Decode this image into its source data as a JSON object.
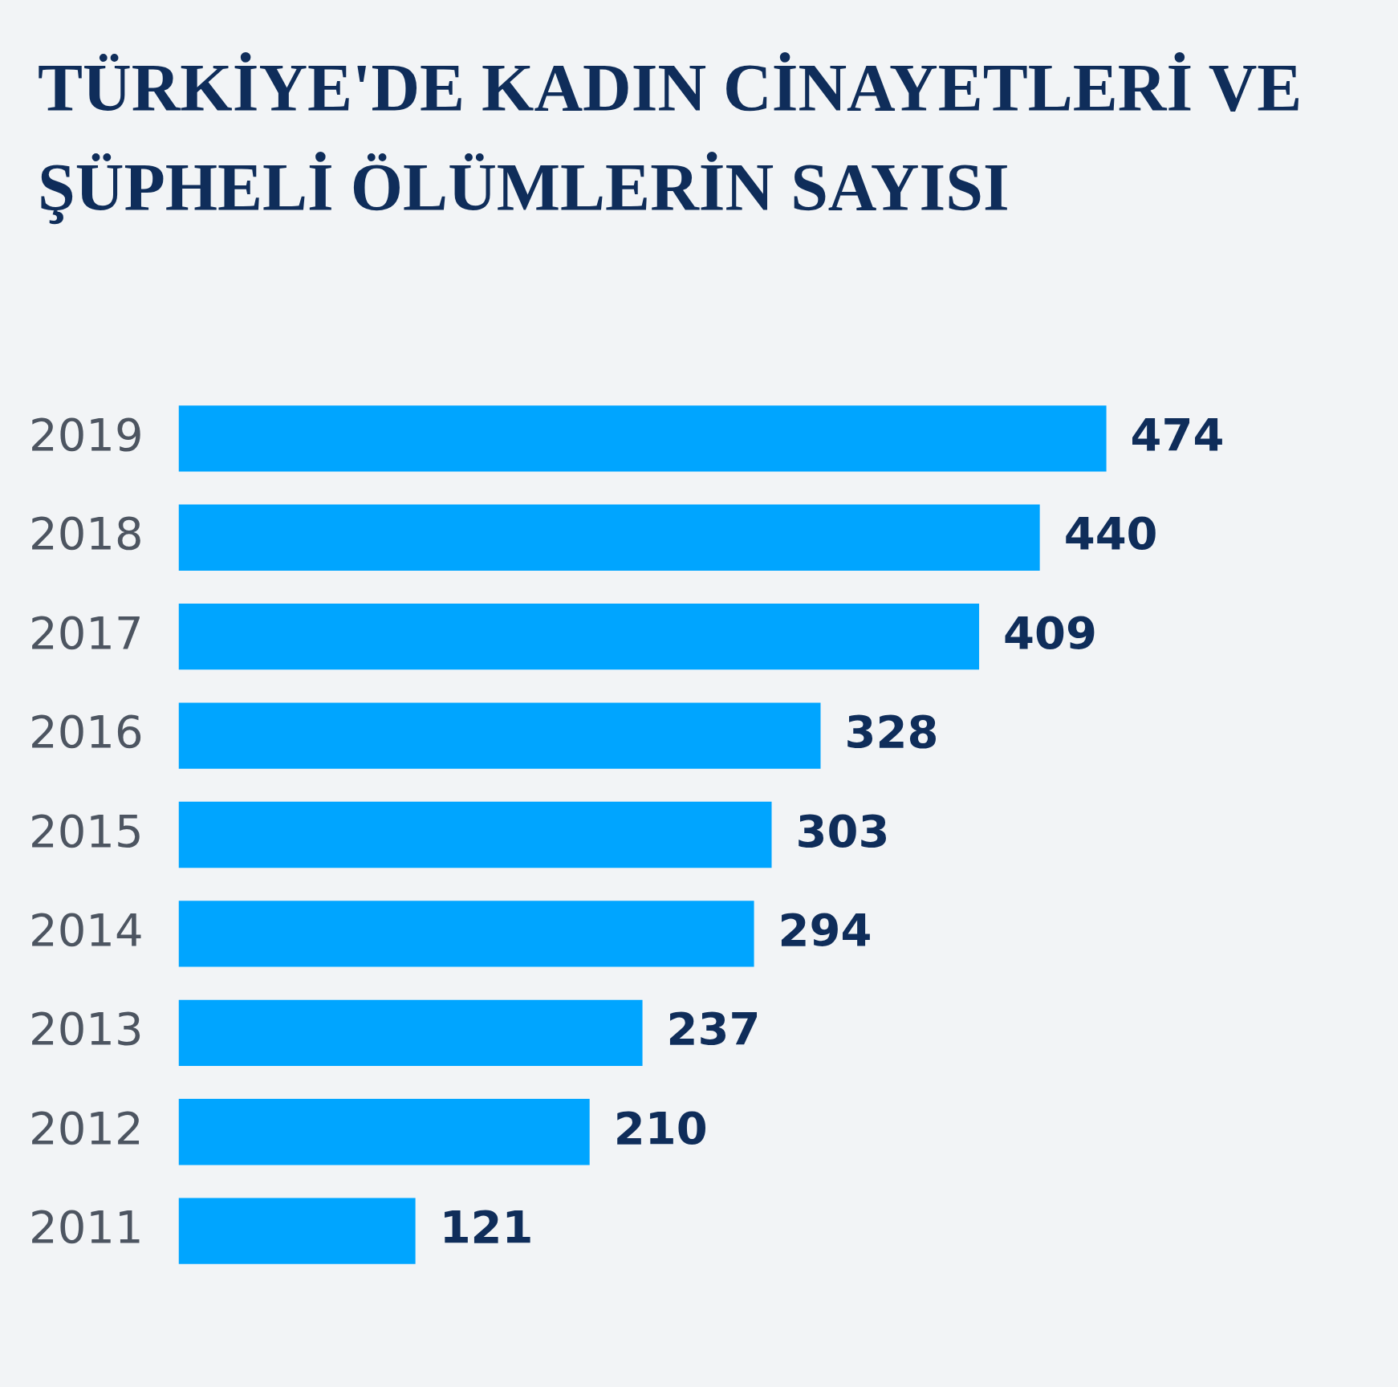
{
  "chart_data": {
    "type": "bar",
    "title": "TÜRKİYE'DE KADIN CİNAYETLERİ VE ŞÜPHELİ ÖLÜMLERİN SAYISI",
    "orientation": "horizontal",
    "categories": [
      "2019",
      "2018",
      "2017",
      "2016",
      "2015",
      "2014",
      "2013",
      "2012",
      "2011"
    ],
    "values": [
      474,
      440,
      409,
      328,
      303,
      294,
      237,
      210,
      121
    ],
    "color": "#00a5ff",
    "data_labels": true
  }
}
